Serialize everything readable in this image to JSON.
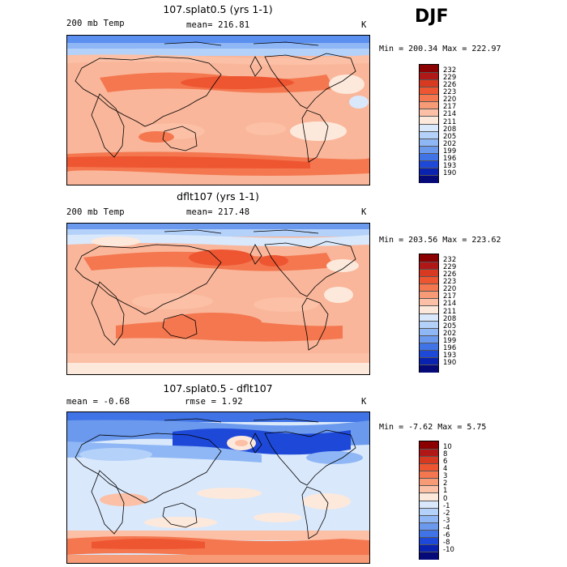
{
  "season": "DJF",
  "panels": [
    {
      "title": "107.splat0.5 (yrs 1-1)",
      "left_label": "200 mb Temp",
      "center_label": "mean= 216.81",
      "units": "K",
      "minmax": "Min = 200.34 Max = 222.97",
      "colorbar": {
        "labels": [
          "232",
          "229",
          "226",
          "223",
          "220",
          "217",
          "214",
          "211",
          "208",
          "205",
          "202",
          "199",
          "196",
          "193",
          "190"
        ],
        "colors": [
          "#8b0000",
          "#b01818",
          "#d73a20",
          "#ee5632",
          "#f4774f",
          "#f79a76",
          "#fbc0a6",
          "#fde9dc",
          "#d9e8fb",
          "#b4d1f9",
          "#8fb7f5",
          "#6a99ee",
          "#3f73e6",
          "#1e49d8",
          "#0a22b0",
          "#050a78"
        ]
      },
      "map": "top"
    },
    {
      "title": "dflt107 (yrs 1-1)",
      "left_label": "200 mb Temp",
      "center_label": "mean= 217.48",
      "units": "K",
      "minmax": "Min = 203.56 Max = 223.62",
      "colorbar": {
        "labels": [
          "232",
          "229",
          "226",
          "223",
          "220",
          "217",
          "214",
          "211",
          "208",
          "205",
          "202",
          "199",
          "196",
          "193",
          "190"
        ],
        "colors": [
          "#8b0000",
          "#b01818",
          "#d73a20",
          "#ee5632",
          "#f4774f",
          "#f79a76",
          "#fbc0a6",
          "#fde9dc",
          "#d9e8fb",
          "#b4d1f9",
          "#8fb7f5",
          "#6a99ee",
          "#3f73e6",
          "#1e49d8",
          "#0a22b0",
          "#050a78"
        ]
      },
      "map": "middle"
    },
    {
      "title": "107.splat0.5 - dflt107",
      "left_label": "mean =   -0.68",
      "center_label": "rmse =   1.92",
      "units": "K",
      "minmax": "Min =  -7.62 Max =   5.75",
      "colorbar": {
        "labels": [
          "10",
          "8",
          "6",
          "4",
          "3",
          "2",
          "1",
          "0",
          "-1",
          "-2",
          "-3",
          "-4",
          "-6",
          "-8",
          "-10"
        ],
        "colors": [
          "#8b0000",
          "#b01818",
          "#d73a20",
          "#ee5632",
          "#f4774f",
          "#f79a76",
          "#fbc0a6",
          "#fde9dc",
          "#d9e8fb",
          "#b4d1f9",
          "#8fb7f5",
          "#6a99ee",
          "#3f73e6",
          "#1e49d8",
          "#0a22b0",
          "#050a78"
        ]
      },
      "map": "diff"
    }
  ]
}
